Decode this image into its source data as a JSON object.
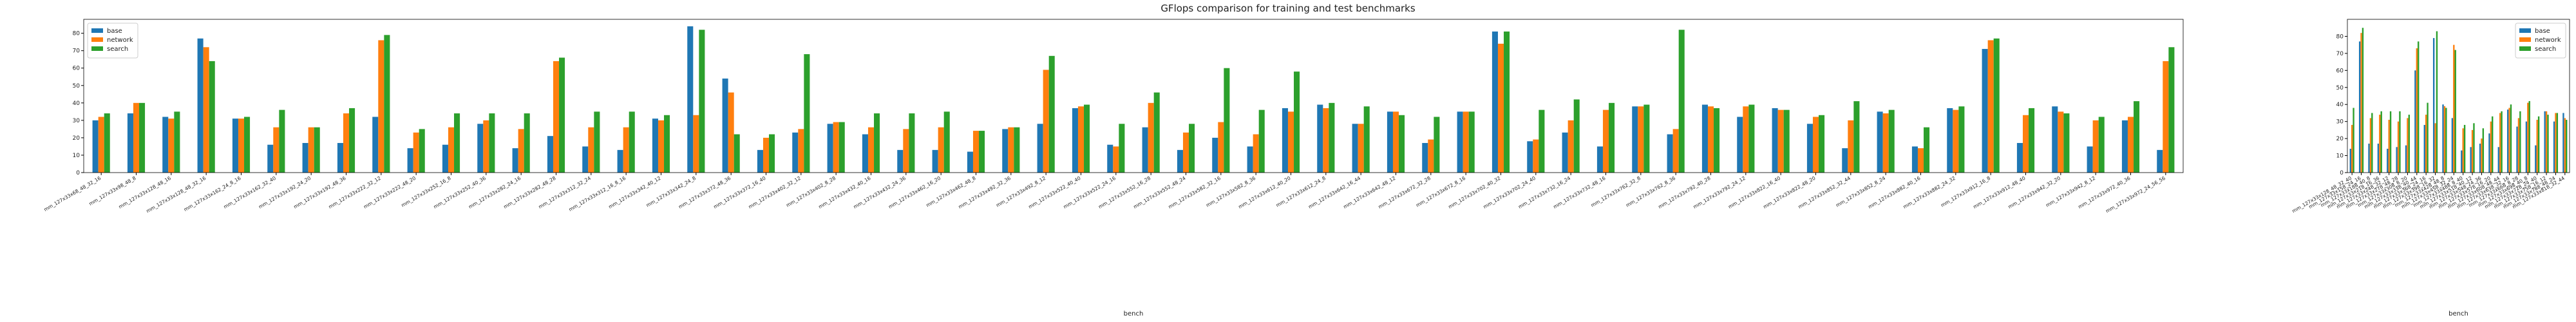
{
  "title": "GFlops comparison for training and test benchmarks",
  "chart_data": [
    {
      "type": "bar",
      "xlabel": "bench",
      "legend": "upper left",
      "ylim": [
        0,
        88
      ],
      "yticks": [
        0,
        10,
        20,
        30,
        40,
        50,
        60,
        70,
        80
      ],
      "categories": [
        "mm_127x33x68_48_32_16",
        "mm_127x33x98_48_8",
        "mm_127x33x128_48_16",
        "mm_127x33x128_48_32_16",
        "mm_127x33x162_24_8_16",
        "mm_127x33x162_32_40",
        "mm_127x33x192_24_20",
        "mm_127x33x192_48_36",
        "mm_127x33x222_32_12",
        "mm_127x33x222_48_20",
        "mm_127x33x252_16_8",
        "mm_127x33x252_40_36",
        "mm_127x33x282_24_16",
        "mm_127x33x282_48_28",
        "mm_127x33x312_32_24",
        "mm_127x33x312_16_8_16",
        "mm_127x33x342_40_12",
        "mm_127x33x342_24_8",
        "mm_127x33x372_48_36",
        "mm_127x33x372_16_40",
        "mm_127x33x402_32_12",
        "mm_127x33x402_8_28",
        "mm_127x33x432_40_16",
        "mm_127x33x432_24_36",
        "mm_127x33x462_16_20",
        "mm_127x33x462_48_8",
        "mm_127x33x492_32_36",
        "mm_127x33x492_8_12",
        "mm_127x33x522_40_40",
        "mm_127x33x522_24_16",
        "mm_127x33x552_16_28",
        "mm_127x33x552_48_24",
        "mm_127x33x582_32_16",
        "mm_127x33x582_8_36",
        "mm_127x33x612_40_20",
        "mm_127x33x612_24_8",
        "mm_127x33x642_16_44",
        "mm_127x33x642_48_12",
        "mm_127x33x672_32_28",
        "mm_127x33x672_8_16",
        "mm_127x33x702_40_32",
        "mm_127x33x702_24_40",
        "mm_127x33x732_16_24",
        "mm_127x33x732_48_16",
        "mm_127x33x762_32_8",
        "mm_127x33x762_8_36",
        "mm_127x33x792_40_28",
        "mm_127x33x792_24_12",
        "mm_127x33x822_16_40",
        "mm_127x33x822_48_20",
        "mm_127x33x852_32_44",
        "mm_127x33x852_8_24",
        "mm_127x33x882_40_16",
        "mm_127x33x882_24_32",
        "mm_127x33x912_16_8",
        "mm_127x33x912_48_40",
        "mm_127x33x942_32_20",
        "mm_127x33x942_8_12",
        "mm_127x33x972_40_36",
        "mm_127x33x972_24_56_56"
      ],
      "series": [
        {
          "name": "base",
          "color": "#1f77b4",
          "values": [
            30,
            34,
            32,
            77,
            31,
            16,
            17,
            17,
            32,
            14,
            16,
            28,
            14,
            21,
            15,
            13,
            31,
            84,
            54,
            13,
            23,
            28,
            22,
            13,
            13,
            12,
            25,
            28,
            37,
            16,
            26,
            13,
            20,
            15,
            37,
            39,
            28,
            35,
            17,
            35,
            81,
            18,
            23,
            15,
            38,
            22,
            39,
            32,
            37,
            28,
            14,
            35,
            15,
            37,
            71,
            17,
            38,
            15,
            30,
            13
          ]
        },
        {
          "name": "network",
          "color": "#ff7f0e",
          "values": [
            32,
            40,
            31,
            72,
            31,
            26,
            26,
            34,
            76,
            23,
            26,
            30,
            25,
            64,
            26,
            26,
            30,
            33,
            46,
            20,
            25,
            29,
            26,
            25,
            26,
            24,
            26,
            59,
            38,
            15,
            40,
            23,
            29,
            22,
            35,
            37,
            28,
            35,
            19,
            35,
            74,
            19,
            30,
            36,
            38,
            25,
            38,
            38,
            36,
            32,
            30,
            34,
            14,
            36,
            76,
            33,
            35,
            30,
            32,
            64
          ]
        },
        {
          "name": "search",
          "color": "#2ca02c",
          "values": [
            34,
            40,
            35,
            64,
            32,
            36,
            26,
            37,
            79,
            25,
            34,
            34,
            34,
            66,
            35,
            35,
            33,
            82,
            22,
            22,
            68,
            29,
            34,
            34,
            35,
            24,
            26,
            67,
            39,
            28,
            46,
            28,
            60,
            36,
            58,
            40,
            38,
            33,
            32,
            35,
            81,
            36,
            42,
            40,
            39,
            82,
            37,
            39,
            36,
            33,
            41,
            36,
            26,
            38,
            77,
            37,
            34,
            32,
            41,
            72
          ]
        }
      ]
    },
    {
      "type": "bar",
      "xlabel": "bench",
      "legend": "upper right",
      "ylim": [
        0,
        90
      ],
      "yticks": [
        0,
        10,
        20,
        30,
        40,
        50,
        60,
        70,
        80
      ],
      "categories": [
        "mm_127x33x128_48_32_40",
        "mm_127x33x158_24_16",
        "mm_127x33x188_40_8",
        "mm_127x33x218_16_36",
        "mm_127x33x248_32_12",
        "mm_127x33x278_48_28",
        "mm_127x33x308_8_20",
        "mm_127x33x338_40_44",
        "mm_127x33x368_24_16",
        "mm_127x33x398_16_32",
        "mm_127x33x428_48_8",
        "mm_127x33x458_32_24",
        "mm_127x33x488_8_40",
        "mm_127x33x518_40_12",
        "mm_127x33x548_24_36",
        "mm_127x33x578_16_20",
        "mm_127x33x608_48_44",
        "mm_127x33x638_32_16",
        "mm_127x33x668_8_28",
        "mm_127x33x698_40_8",
        "mm_127x33x728_24_40",
        "mm_127x33x758_16_12",
        "mm_127x33x788_48_24",
        "mm_127x33x818_32_44"
      ],
      "series": [
        {
          "name": "base",
          "color": "#1f77b4",
          "values": [
            14,
            77,
            17,
            17,
            14,
            15,
            16,
            60,
            28,
            79,
            40,
            32,
            13,
            15,
            17,
            23,
            15,
            37,
            27,
            30,
            16,
            36,
            30,
            35
          ]
        },
        {
          "name": "network",
          "color": "#ff7f0e",
          "values": [
            28,
            82,
            32,
            34,
            31,
            30,
            32,
            73,
            34,
            29,
            39,
            75,
            26,
            25,
            20,
            30,
            35,
            38,
            32,
            41,
            31,
            36,
            35,
            32
          ]
        },
        {
          "name": "search",
          "color": "#2ca02c",
          "values": [
            38,
            85,
            35,
            36,
            36,
            36,
            34,
            77,
            41,
            83,
            38,
            72,
            28,
            29,
            26,
            33,
            36,
            40,
            36,
            42,
            33,
            34,
            35,
            31
          ]
        }
      ]
    }
  ]
}
